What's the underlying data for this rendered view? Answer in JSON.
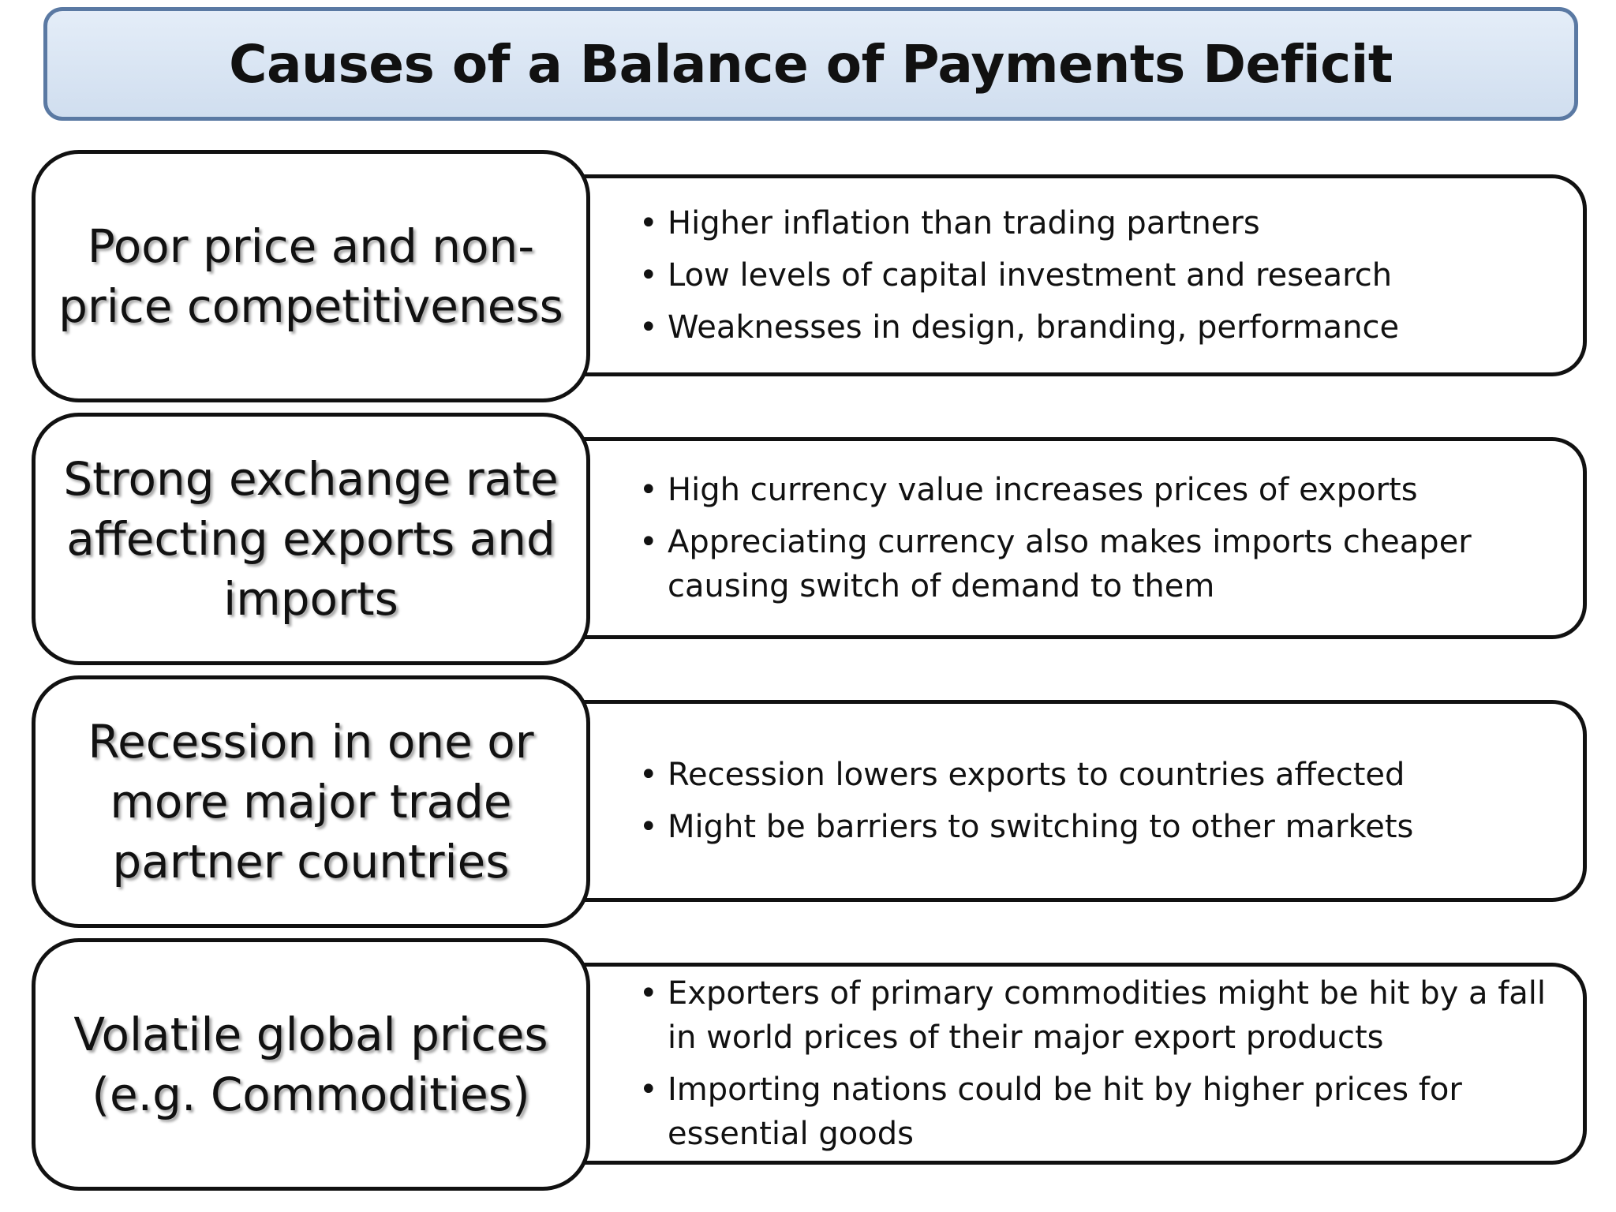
{
  "title": "Causes of a Balance of Payments Deficit",
  "causes": [
    {
      "label": "Poor price and non-price competitiveness",
      "bullets": [
        "Higher inflation than trading partners",
        "Low levels of capital investment and research",
        "Weaknesses in design, branding, performance"
      ]
    },
    {
      "label": "Strong exchange rate affecting exports and imports",
      "bullets": [
        "High currency value increases prices of exports",
        "Appreciating currency also makes imports cheaper causing switch of demand to them"
      ]
    },
    {
      "label": "Recession in one or more major trade partner countries",
      "bullets": [
        "Recession lowers exports to countries affected",
        "Might be barriers to switching to other markets"
      ]
    },
    {
      "label": "Volatile global prices (e.g. Commodities)",
      "bullets": [
        "Exporters of primary commodities might be hit by a fall in world prices of their major export products",
        "Importing nations could be hit by higher prices for essential goods"
      ]
    }
  ],
  "colors": {
    "title_fill": "#d9e4f2",
    "title_border": "#5a79a3",
    "box_border": "#111111"
  }
}
